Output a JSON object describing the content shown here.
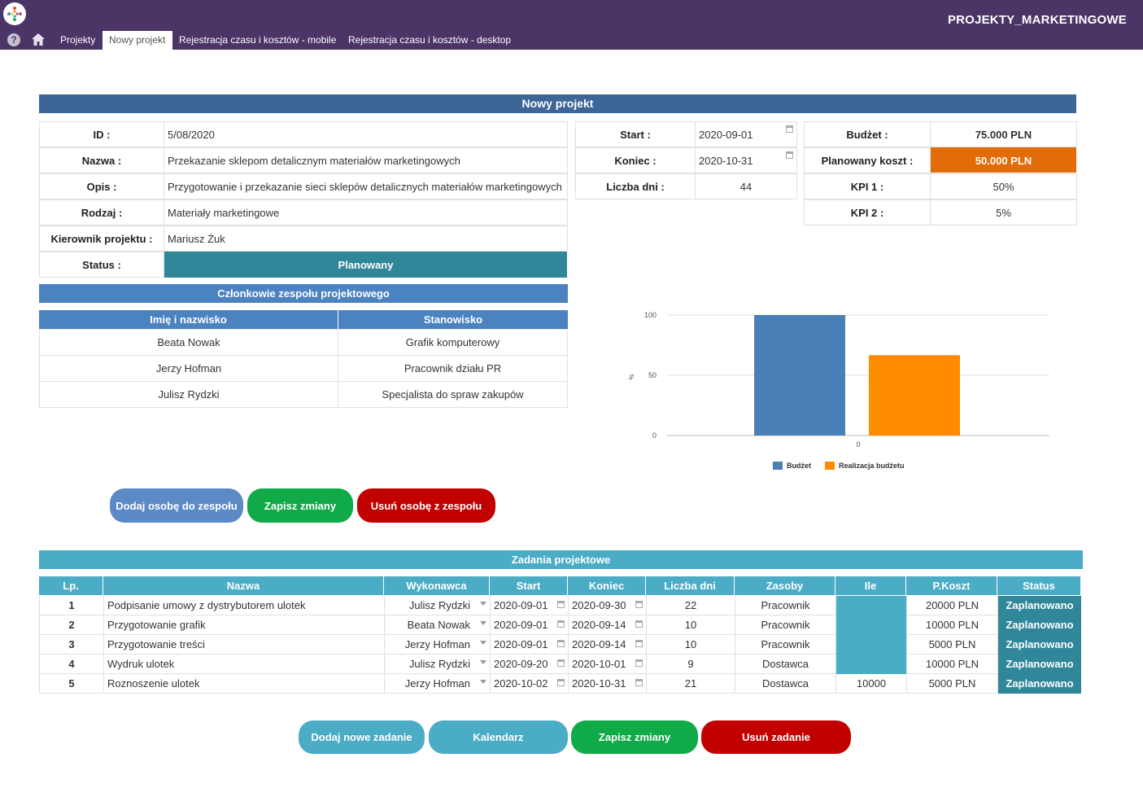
{
  "app": {
    "title": "PROJEKTY_MARKETINGOWE",
    "tabs": [
      "Projekty",
      "Nowy projekt",
      "Rejestracja czasu i kosztów - mobile",
      "Rejestracja czasu i kosztów - desktop"
    ],
    "active_tab": "Nowy projekt",
    "help_label": "?"
  },
  "form": {
    "title": "Nowy projekt",
    "id_label": "ID :",
    "id_value": "5/08/2020",
    "name_label": "Nazwa :",
    "name_value": "Przekazanie sklepom detalicznym materiałów marketingowych",
    "desc_label": "Opis :",
    "desc_value": "Przygotowanie i przekazanie sieci sklepów detalicznych materiałów marketingowych",
    "type_label": "Rodzaj :",
    "type_value": "Materiały marketingowe",
    "manager_label": "Kierownik projektu :",
    "manager_value": "Mariusz Żuk",
    "status_label": "Status :",
    "status_value": "Planowany",
    "start_label": "Start :",
    "start_value": "2020-09-01",
    "end_label": "Koniec :",
    "end_value": "2020-10-31",
    "days_label": "Liczba dni :",
    "days_value": "44",
    "budget_label": "Budżet :",
    "budget_value": "75.000 PLN",
    "planned_cost_label": "Planowany koszt :",
    "planned_cost_value": "50.000 PLN",
    "kpi1_label": "KPI 1 :",
    "kpi1_value": "50%",
    "kpi2_label": "KPI 2 :",
    "kpi2_value": "5%"
  },
  "team": {
    "title": "Członkowie zespołu projektowego",
    "columns": [
      "Imię i nazwisko",
      "Stanowisko"
    ],
    "rows": [
      [
        "Beata Nowak",
        "Grafik komputerowy"
      ],
      [
        "Jerzy Hofman",
        "Pracownik działu PR"
      ],
      [
        "Julisz Rydzki",
        "Specjalista do spraw zakupów"
      ]
    ],
    "buttons": {
      "add": "Dodaj osobę do zespołu",
      "save": "Zapisz zmiany",
      "remove": "Usuń osobę z zespołu"
    }
  },
  "chart_data": {
    "type": "bar",
    "categories": [
      "0"
    ],
    "series": [
      {
        "name": "Budżet",
        "values": [
          100
        ],
        "color": "#4a80b8"
      },
      {
        "name": "Realizacja budżetu",
        "values": [
          66.7
        ],
        "color": "#ff8c00"
      }
    ],
    "ylabel": "%",
    "ylim": [
      0,
      100
    ],
    "yticks": [
      "0",
      "50",
      "100"
    ],
    "grid": true,
    "legend": "bottom"
  },
  "tasks": {
    "title": "Zadania projektowe",
    "columns": [
      "Lp.",
      "Nazwa",
      "Wykonawca",
      "Start",
      "Koniec",
      "Liczba dni",
      "Zasoby",
      "Ile",
      "P.Koszt",
      "Status"
    ],
    "rows": [
      {
        "lp": "1",
        "name": "Podpisanie umowy z dystrybutorem ulotek",
        "who": "Julisz Rydzki",
        "start": "2020-09-01",
        "end": "2020-09-30",
        "days": "22",
        "res": "Pracownik",
        "qty": "",
        "cost": "20000 PLN",
        "status": "Zaplanowano"
      },
      {
        "lp": "2",
        "name": "Przygotowanie grafik",
        "who": "Beata Nowak",
        "start": "2020-09-01",
        "end": "2020-09-14",
        "days": "10",
        "res": "Pracownik",
        "qty": "",
        "cost": "10000 PLN",
        "status": "Zaplanowano"
      },
      {
        "lp": "3",
        "name": "Przygotowanie treści",
        "who": "Jerzy Hofman",
        "start": "2020-09-01",
        "end": "2020-09-14",
        "days": "10",
        "res": "Pracownik",
        "qty": "",
        "cost": "5000 PLN",
        "status": "Zaplanowano"
      },
      {
        "lp": "4",
        "name": "Wydruk ulotek",
        "who": "Julisz Rydzki",
        "start": "2020-09-20",
        "end": "2020-10-01",
        "days": "9",
        "res": "Dostawca",
        "qty": "",
        "cost": "10000 PLN",
        "status": "Zaplanowano"
      },
      {
        "lp": "5",
        "name": "Roznoszenie ulotek",
        "who": "Jerzy Hofman",
        "start": "2020-10-02",
        "end": "2020-10-31",
        "days": "21",
        "res": "Dostawca",
        "qty": "10000",
        "cost": "5000 PLN",
        "status": "Zaplanowano"
      }
    ],
    "buttons": {
      "add": "Dodaj nowe zadanie",
      "calendar": "Kalendarz",
      "save": "Zapisz zmiany",
      "delete": "Usuń zadanie"
    }
  },
  "colors": {
    "header": "#4a3566",
    "title_bar": "#3d6596",
    "status_bar": "#31879a",
    "orange": "#e36c0a",
    "btn_blue": "#5b8ac6",
    "btn_green": "#11aa48",
    "btn_red": "#c20000",
    "btn_teal": "#4bacc6"
  }
}
